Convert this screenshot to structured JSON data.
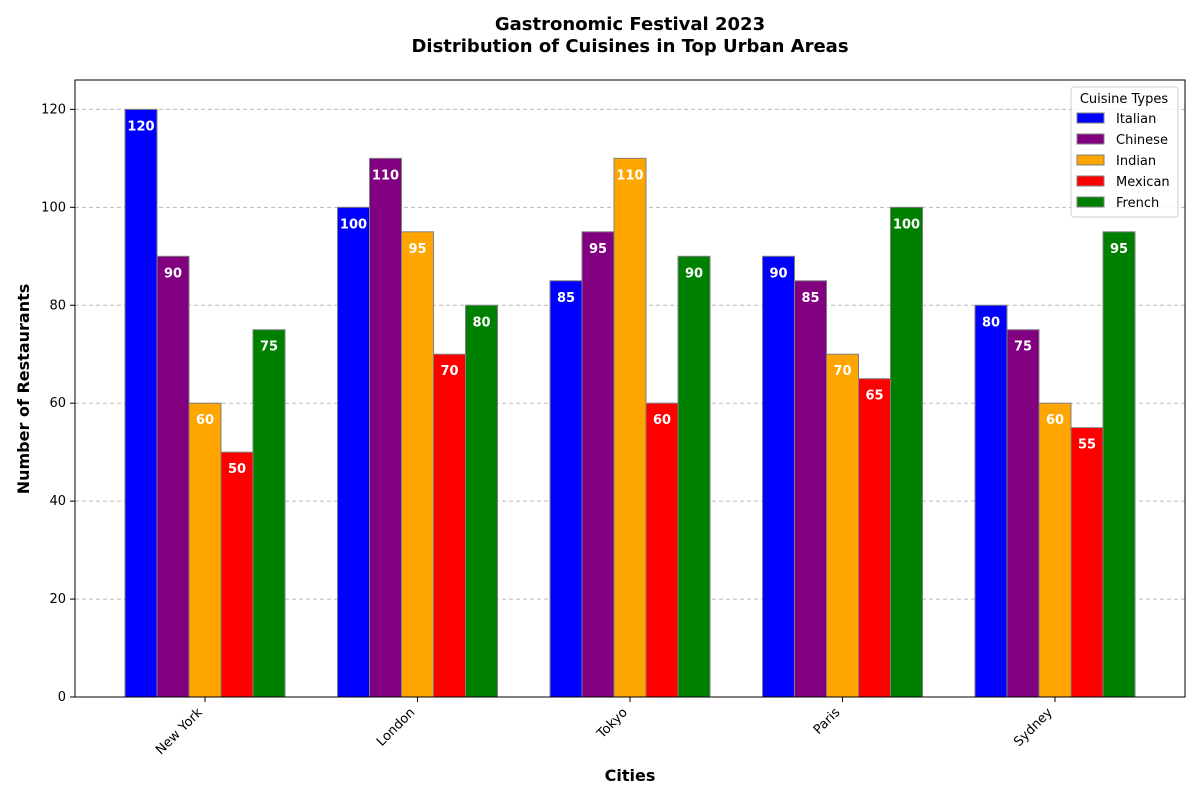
{
  "chart_data": {
    "type": "bar",
    "title": "Gastronomic Festival 2023",
    "subtitle": "Distribution of Cuisines in Top Urban Areas",
    "xlabel": "Cities",
    "ylabel": "Number of Restaurants",
    "categories": [
      "New York",
      "London",
      "Tokyo",
      "Paris",
      "Sydney"
    ],
    "series": [
      {
        "name": "Italian",
        "color": "#0000ff",
        "values": [
          120,
          100,
          85,
          90,
          80
        ]
      },
      {
        "name": "Chinese",
        "color": "#800080",
        "values": [
          90,
          110,
          95,
          85,
          75
        ]
      },
      {
        "name": "Indian",
        "color": "#ffa500",
        "values": [
          60,
          95,
          110,
          70,
          60
        ]
      },
      {
        "name": "Mexican",
        "color": "#ff0000",
        "values": [
          50,
          70,
          60,
          65,
          55
        ]
      },
      {
        "name": "French",
        "color": "#008000",
        "values": [
          75,
          80,
          90,
          100,
          95
        ]
      }
    ],
    "ylim": [
      0,
      126
    ],
    "yticks": [
      0,
      20,
      40,
      60,
      80,
      100,
      120
    ],
    "grid": "y-dashed",
    "legend_title": "Cuisine Types",
    "legend_position": "top-right",
    "data_labels": true
  }
}
